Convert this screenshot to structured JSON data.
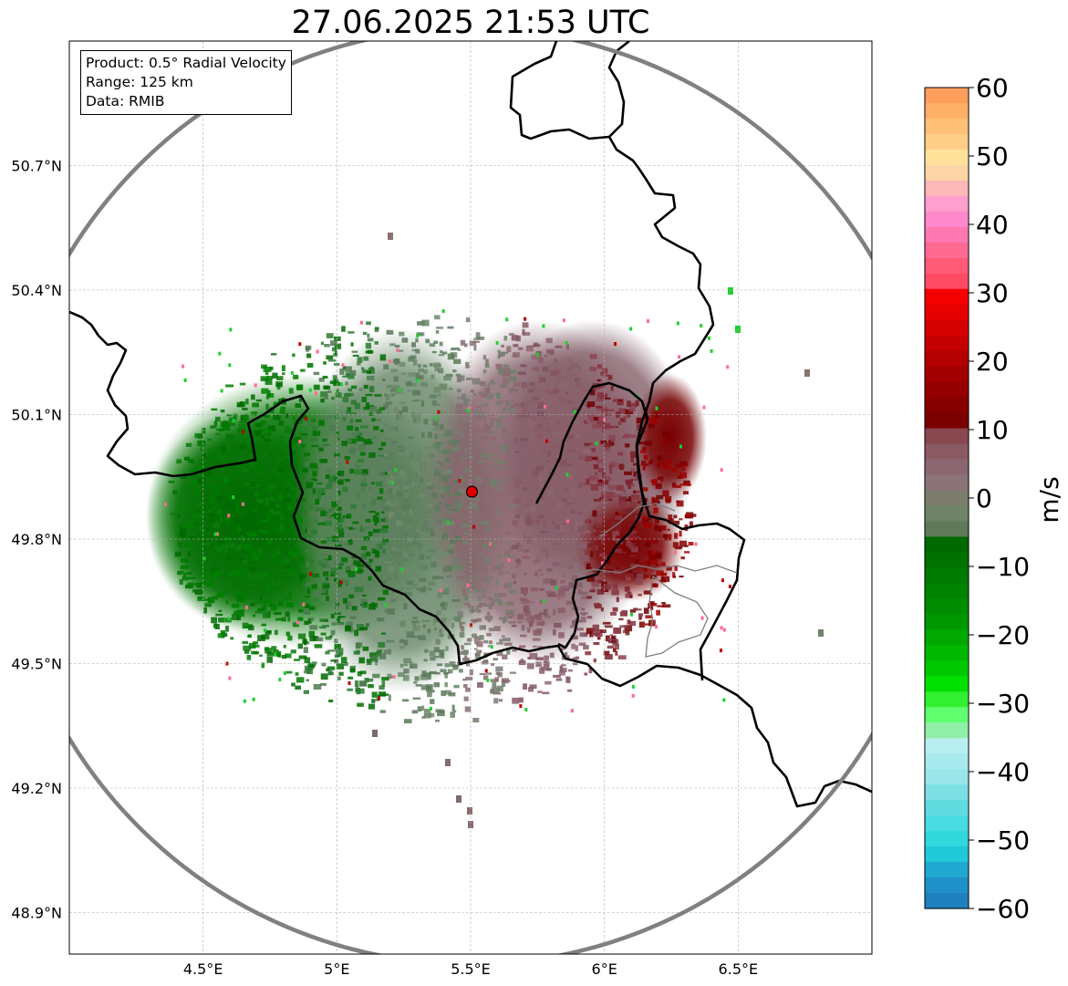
{
  "title": "27.06.2025 21:53 UTC",
  "info_box": {
    "product": "Product: 0.5° Radial Velocity",
    "range": "Range: 125 km",
    "data": "Data: RMIB"
  },
  "map": {
    "lon_range": [
      4.0,
      7.0
    ],
    "lat_range": [
      48.8,
      51.0
    ],
    "lon_ticks": [
      {
        "value": 4.5,
        "label": "4.5°E"
      },
      {
        "value": 5.0,
        "label": "5°E"
      },
      {
        "value": 5.5,
        "label": "5.5°E"
      },
      {
        "value": 6.0,
        "label": "6°E"
      },
      {
        "value": 6.5,
        "label": "6.5°E"
      }
    ],
    "lat_ticks": [
      {
        "value": 50.7,
        "label": "50.7°N"
      },
      {
        "value": 50.4,
        "label": "50.4°N"
      },
      {
        "value": 50.1,
        "label": "50.1°N"
      },
      {
        "value": 49.8,
        "label": "49.8°N"
      },
      {
        "value": 49.5,
        "label": "49.5°N"
      },
      {
        "value": 49.2,
        "label": "49.2°N"
      },
      {
        "value": 48.9,
        "label": "48.9°N"
      }
    ],
    "radar_site": {
      "lon": 5.505,
      "lat": 49.914,
      "color": "#e00000"
    },
    "range_ring_color": "#808080",
    "gridlines": true
  },
  "colorbar": {
    "unit": "m/s",
    "min": -60,
    "max": 60,
    "tick_values": [
      60,
      50,
      40,
      30,
      20,
      10,
      0,
      -10,
      -20,
      -30,
      -40,
      -50,
      -60
    ],
    "tick_labels": [
      "60",
      "50",
      "40",
      "30",
      "20",
      "10",
      "0",
      "−10",
      "−20",
      "−30",
      "−40",
      "−50",
      "−60"
    ],
    "colors_top_to_bottom": [
      "#ff9e5a",
      "#ffb066",
      "#ffc078",
      "#ffcf88",
      "#ffe19a",
      "#fdd6a8",
      "#fcb8b8",
      "#ff9fce",
      "#ff88cc",
      "#ff78b0",
      "#ff6a92",
      "#ff5a78",
      "#ff4a64",
      "#f50000",
      "#e60000",
      "#d50000",
      "#c40000",
      "#b30000",
      "#a20000",
      "#940000",
      "#870000",
      "#7a0000",
      "#874850",
      "#8a5a62",
      "#8a6670",
      "#8a7478",
      "#7d7d6e",
      "#6f8468",
      "#5f7a58",
      "#006a00",
      "#007200",
      "#007a00",
      "#008300",
      "#008c00",
      "#009800",
      "#00a800",
      "#00b800",
      "#00c800",
      "#00e000",
      "#30f030",
      "#60ff70",
      "#90f0a8",
      "#b8eef0",
      "#a8eaee",
      "#98e6ea",
      "#7cdfe4",
      "#60dce0",
      "#48dbe0",
      "#30d8dc",
      "#20c8d8",
      "#20a8d0",
      "#2090c8",
      "#1f80c0"
    ]
  }
}
